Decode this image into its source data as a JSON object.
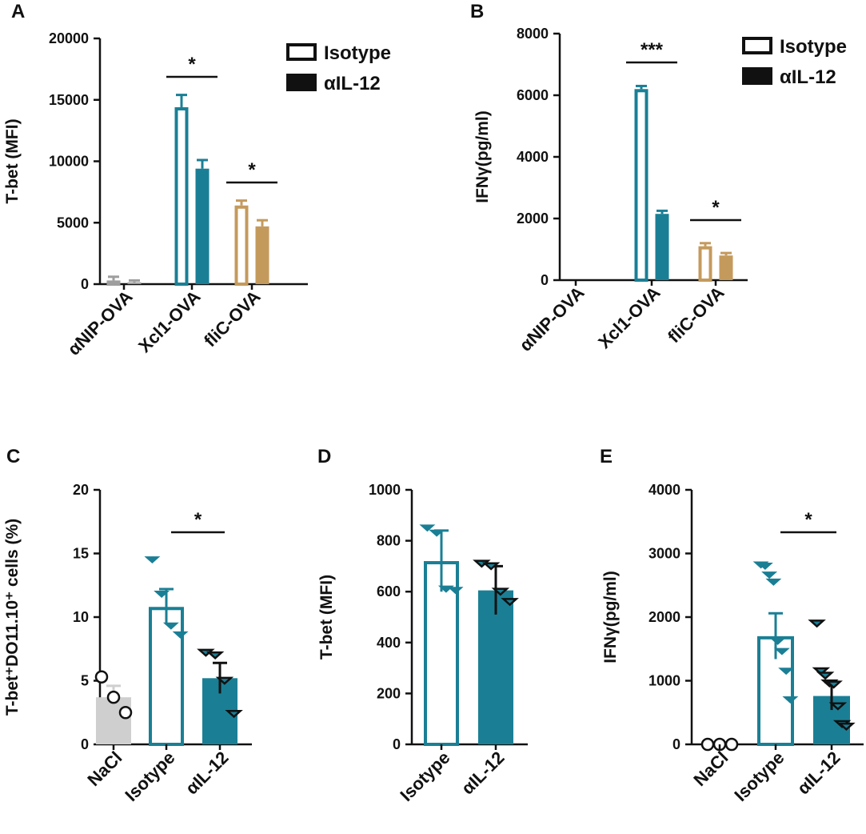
{
  "chart_data": [
    {
      "panel": "A",
      "type": "bar",
      "ylabel": "T-bet (MFI)",
      "ylim": [
        0,
        20000
      ],
      "yticks": [
        0,
        5000,
        10000,
        15000,
        20000
      ],
      "categories": [
        "αNIP-OVA",
        "Xcl1-OVA",
        "fliC-OVA"
      ],
      "category_colors": [
        "#9e9e9e",
        "#1a7f95",
        "#c49a5c"
      ],
      "series": [
        {
          "name": "Isotype",
          "style": "open",
          "values": [
            300,
            14400,
            6400
          ],
          "errors": [
            300,
            1000,
            400
          ]
        },
        {
          "name": "αIL-12",
          "style": "filled",
          "values": [
            150,
            9400,
            4700
          ],
          "errors": [
            150,
            700,
            500
          ]
        }
      ],
      "legend": [
        "Isotype",
        "αIL-12"
      ],
      "annotations": [
        {
          "text": "*",
          "category": 1
        },
        {
          "text": "*",
          "category": 2
        }
      ]
    },
    {
      "panel": "B",
      "type": "bar",
      "ylabel": "IFNγ(pg/ml)",
      "ylim": [
        0,
        8000
      ],
      "yticks": [
        0,
        2000,
        4000,
        6000,
        8000
      ],
      "categories": [
        "αNIP-OVA",
        "Xcl1-OVA",
        "fliC-OVA"
      ],
      "category_colors": [
        "#9e9e9e",
        "#1a7f95",
        "#c49a5c"
      ],
      "series": [
        {
          "name": "Isotype",
          "style": "open",
          "values": [
            0,
            6200,
            1100
          ],
          "errors": [
            0,
            100,
            100
          ]
        },
        {
          "name": "αIL-12",
          "style": "filled",
          "values": [
            0,
            2150,
            800
          ],
          "errors": [
            0,
            100,
            80
          ]
        }
      ],
      "legend": [
        "Isotype",
        "αIL-12"
      ],
      "annotations": [
        {
          "text": "***",
          "category": 1
        },
        {
          "text": "*",
          "category": 2
        }
      ]
    },
    {
      "panel": "C",
      "type": "bar",
      "ylabel": "T-bet⁺DO11.10⁺ cells (%)",
      "ylim": [
        0,
        20
      ],
      "yticks": [
        0,
        5,
        10,
        15,
        20
      ],
      "categories": [
        "NaCl",
        "Isotype",
        "αIL-12"
      ],
      "bars": [
        {
          "style": "filled",
          "color": "#cfcfcf",
          "value": 3.7,
          "error": 0.9,
          "marker": "circle",
          "points": [
            5.3,
            3.7,
            2.5
          ]
        },
        {
          "style": "open",
          "color": "#1a7f95",
          "value": 10.8,
          "error": 1.4,
          "marker": "tri-filled",
          "points": [
            14.5,
            11.8,
            9.3,
            8.6
          ]
        },
        {
          "style": "filled",
          "color": "#1a7f95",
          "value": 5.2,
          "error": 1.2,
          "marker": "tri-open",
          "points": [
            7.2,
            7.0,
            5.0,
            2.4
          ]
        }
      ],
      "annotations": [
        {
          "text": "*",
          "from": 1,
          "to": 2
        }
      ]
    },
    {
      "panel": "D",
      "type": "bar",
      "ylabel": "T-bet (MFI)",
      "ylim": [
        0,
        1000
      ],
      "yticks": [
        0,
        200,
        400,
        600,
        800,
        1000
      ],
      "categories": [
        "Isotype",
        "αIL-12"
      ],
      "bars": [
        {
          "style": "open",
          "color": "#1a7f95",
          "value": 720,
          "error": 120,
          "marker": "tri-filled",
          "points": [
            850,
            830,
            610,
            605
          ]
        },
        {
          "style": "filled",
          "color": "#1a7f95",
          "value": 605,
          "error": 95,
          "marker": "tri-open",
          "points": [
            710,
            700,
            600,
            560
          ]
        }
      ],
      "annotations": []
    },
    {
      "panel": "E",
      "type": "bar",
      "ylabel": "IFNγ(pg/ml)",
      "ylim": [
        0,
        4000
      ],
      "yticks": [
        0,
        1000,
        2000,
        3000,
        4000
      ],
      "categories": [
        "NaCl",
        "Isotype",
        "αIL-12"
      ],
      "bars": [
        {
          "style": "filled",
          "color": "#cfcfcf",
          "value": 0,
          "error": 0,
          "marker": "circle",
          "points": [
            0,
            0,
            0
          ]
        },
        {
          "style": "open",
          "color": "#1a7f95",
          "value": 1700,
          "error": 360,
          "marker": "tri-filled",
          "points": [
            2820,
            2800,
            2660,
            2550,
            1620,
            1460,
            1150,
            700
          ]
        },
        {
          "style": "filled",
          "color": "#1a7f95",
          "value": 760,
          "error": 220,
          "marker": "tri-open",
          "points": [
            1900,
            1150,
            1080,
            960,
            940,
            600,
            320,
            280
          ]
        }
      ],
      "annotations": [
        {
          "text": "*",
          "from": 1,
          "to": 2
        }
      ]
    }
  ]
}
